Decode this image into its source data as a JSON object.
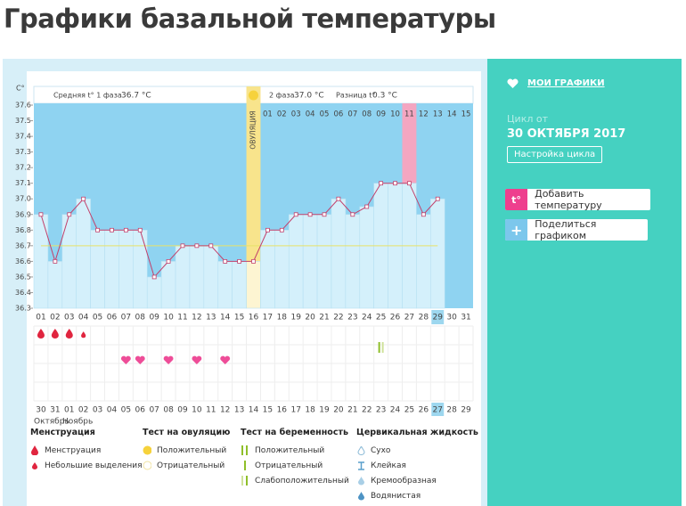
{
  "header": {
    "title": "Графики базальной температуры"
  },
  "chart_data": {
    "type": "line",
    "y_label": "C°",
    "phase1_label": "Средняя t° 1 фаза",
    "phase1_value": "36.7 °C",
    "phase2_label": "2 фаза",
    "phase2_value": "37.0 °C",
    "diff_label": "Разница t°",
    "diff_value": "0.3 °C",
    "ovulation_label": "ОВУЛЯЦИЯ",
    "ovulation_index": 15,
    "pink_index": 26,
    "today_index": 28,
    "categories": [
      "01",
      "02",
      "03",
      "04",
      "05",
      "06",
      "07",
      "08",
      "09",
      "10",
      "11",
      "12",
      "13",
      "14",
      "15",
      "16",
      "17",
      "18",
      "19",
      "20",
      "21",
      "22",
      "23",
      "24",
      "25",
      "26",
      "27",
      "28",
      "29",
      "30",
      "31"
    ],
    "phase2_days": [
      "01",
      "02",
      "03",
      "04",
      "05",
      "06",
      "07",
      "08",
      "09",
      "10",
      "11",
      "12",
      "13",
      "14",
      "15"
    ],
    "values": [
      36.9,
      36.6,
      36.9,
      37.0,
      36.8,
      36.8,
      36.8,
      36.8,
      36.5,
      36.6,
      36.7,
      36.7,
      36.7,
      36.6,
      36.6,
      36.6,
      36.8,
      36.8,
      36.9,
      36.9,
      36.9,
      37.0,
      36.9,
      36.95,
      37.1,
      37.1,
      37.1,
      36.9,
      37.0,
      null,
      null
    ],
    "coverline": 36.7,
    "color": "#c2406b",
    "ylim": [
      36.3,
      37.6
    ],
    "yticks": [
      36.3,
      36.4,
      36.5,
      36.6,
      36.7,
      36.8,
      36.9,
      {
        "value": 37,
        "label": "37.0"
      },
      37.1,
      37.2,
      37.3,
      37.4,
      37.5,
      37.6
    ],
    "cycle_dates": [
      "30",
      "31",
      "01",
      "02",
      "03",
      "04",
      "05",
      "06",
      "07",
      "08",
      "09",
      "10",
      "11",
      "12",
      "13",
      "14",
      "15",
      "16",
      "17",
      "18",
      "19",
      "20",
      "21",
      "22",
      "23",
      "24",
      "25",
      "26",
      "27",
      "28",
      "29"
    ],
    "weekend_indices": [
      5,
      6,
      12,
      13,
      19,
      20,
      26,
      27
    ],
    "months": [
      "Октябрь",
      "Ноябрь"
    ],
    "menstruation": [
      0,
      1,
      2
    ],
    "light_bleeding": [
      3
    ],
    "hearts": [
      6,
      7,
      9,
      11,
      13
    ],
    "pregnancy_test": [
      24
    ]
  },
  "legend": {
    "menstruation": {
      "title": "Менструация",
      "items": [
        "Менструация",
        "Небольшие выделения"
      ]
    },
    "ovulation_test": {
      "title": "Тест на овуляцию",
      "items": [
        "Положительный",
        "Отрицательный"
      ]
    },
    "pregnancy_test": {
      "title": "Тест на беременность",
      "items": [
        "Положительный",
        "Отрицательный",
        "Слабоположительный"
      ]
    },
    "cervical": {
      "title": "Цервикальная жидкость",
      "items": [
        "Сухо",
        "Клейкая",
        "Кремообразная",
        "Водянистая"
      ]
    }
  },
  "sidebar": {
    "my_charts": "МОИ ГРАФИКИ",
    "cycle_from": "Цикл от",
    "cycle_date": "30 ОКТЯБРЯ 2017",
    "settings": "Настройка цикла",
    "add_icon": "t°",
    "add_temp": "Добавить температуру",
    "share": "Поделиться графиком"
  }
}
